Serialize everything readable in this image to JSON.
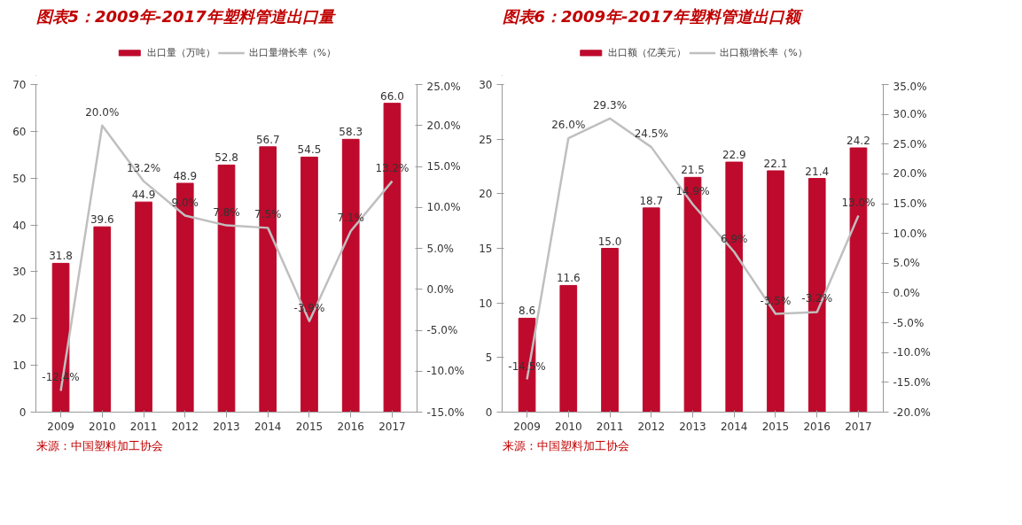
{
  "chart_data": [
    {
      "type": "bar",
      "title": "图表5：2009年-2017年塑料管道出口量",
      "categories": [
        "2009",
        "2010",
        "2011",
        "2012",
        "2013",
        "2014",
        "2015",
        "2016",
        "2017"
      ],
      "series": [
        {
          "name": "出口量（万吨）",
          "color": "#be0a2c",
          "values": [
            31.8,
            39.6,
            44.9,
            48.9,
            52.8,
            56.7,
            54.5,
            58.3,
            66.0
          ],
          "value_labels": [
            "31.8",
            "39.6",
            "44.9",
            "48.9",
            "52.8",
            "56.7",
            "54.5",
            "58.3",
            "66.0"
          ]
        },
        {
          "name": "出口量增长率（%）",
          "type": "line",
          "axis": "y2",
          "color": "#bfbfbf",
          "values": [
            -12.4,
            20.0,
            13.2,
            9.0,
            7.8,
            7.5,
            -3.9,
            7.1,
            13.2
          ],
          "value_labels": [
            "-12.4%",
            "20.0%",
            "13.2%",
            "9.0%",
            "7.8%",
            "7.5%",
            "-3.9%",
            "7.1%",
            "13.2%"
          ]
        }
      ],
      "ylim": [
        0,
        70
      ],
      "yticks": [
        0,
        10,
        20,
        30,
        40,
        50,
        60,
        70
      ],
      "y2lim": [
        -15,
        25
      ],
      "y2ticks": [
        {
          "value": -15,
          "label": "-15.0%"
        },
        {
          "value": -10,
          "label": "-10.0%"
        },
        {
          "value": -5,
          "label": "-5.0%"
        },
        {
          "value": 0,
          "label": "0.0%"
        },
        {
          "value": 5,
          "label": "5.0%"
        },
        {
          "value": 10,
          "label": "10.0%"
        },
        {
          "value": 15,
          "label": "15.0%"
        },
        {
          "value": 20,
          "label": "20.0%"
        },
        {
          "value": 25,
          "label": "25.0%"
        }
      ],
      "grid": false,
      "legend": "top",
      "marker": "none",
      "annotations": [
        "来源：中国塑料加工协会"
      ]
    },
    {
      "type": "bar",
      "title": "图表6：2009年-2017年塑料管道出口额",
      "categories": [
        "2009",
        "2010",
        "2011",
        "2012",
        "2013",
        "2014",
        "2015",
        "2016",
        "2017"
      ],
      "series": [
        {
          "name": "出口额（亿美元）",
          "color": "#be0a2c",
          "values": [
            8.6,
            11.6,
            15.0,
            18.7,
            21.5,
            22.9,
            22.1,
            21.4,
            24.2
          ],
          "value_labels": [
            "8.6",
            "11.6",
            "15.0",
            "18.7",
            "21.5",
            "22.9",
            "22.1",
            "21.4",
            "24.2"
          ]
        },
        {
          "name": "出口额增长率（%）",
          "type": "line",
          "axis": "y2",
          "color": "#bfbfbf",
          "values": [
            -14.5,
            26.0,
            29.3,
            24.5,
            14.9,
            6.9,
            -3.5,
            -3.2,
            13.0
          ],
          "value_labels": [
            "-14.5%",
            "26.0%",
            "29.3%",
            "24.5%",
            "14.9%",
            "6.9%",
            "-3.5%",
            "-3.2%",
            "13.0%"
          ]
        }
      ],
      "ylim": [
        0,
        30
      ],
      "yticks": [
        0,
        5,
        10,
        15,
        20,
        25,
        30
      ],
      "y2lim": [
        -20,
        35
      ],
      "y2ticks": [
        {
          "value": -20,
          "label": "-20.0%"
        },
        {
          "value": -15,
          "label": "-15.0%"
        },
        {
          "value": -10,
          "label": "-10.0%"
        },
        {
          "value": -5,
          "label": "-5.0%"
        },
        {
          "value": 0,
          "label": "0.0%"
        },
        {
          "value": 5,
          "label": "5.0%"
        },
        {
          "value": 10,
          "label": "10.0%"
        },
        {
          "value": 15,
          "label": "15.0%"
        },
        {
          "value": 20,
          "label": "20.0%"
        },
        {
          "value": 25,
          "label": "25.0%"
        },
        {
          "value": 30,
          "label": "30.0%"
        },
        {
          "value": 35,
          "label": "35.0%"
        }
      ],
      "grid": false,
      "legend": "top",
      "marker": "none",
      "annotations": [
        "来源：中国塑料加工协会"
      ]
    }
  ]
}
